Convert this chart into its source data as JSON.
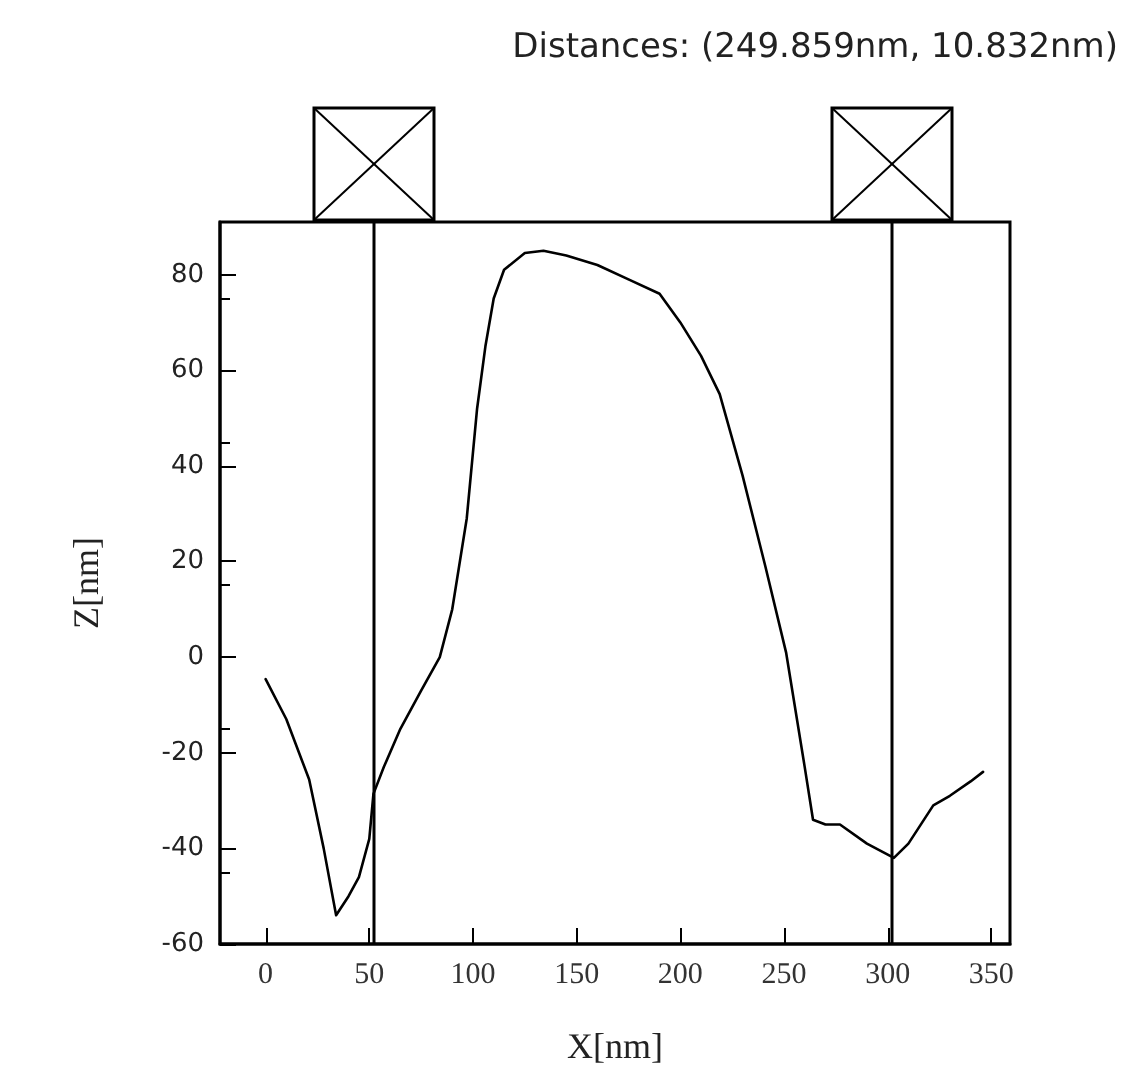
{
  "chart_data": {
    "type": "line",
    "title": "Distances: (249.859nm, 10.832nm)",
    "xlabel": "X[nm]",
    "ylabel": "Z[nm]",
    "x": [
      0,
      10,
      21,
      28,
      34,
      40,
      45,
      50,
      52,
      57,
      65,
      75,
      84,
      90,
      97,
      102,
      106,
      110,
      115,
      125,
      134,
      145,
      160,
      175,
      190,
      200,
      210,
      219,
      230,
      241,
      251,
      260,
      264,
      270,
      277,
      290,
      303,
      310,
      322,
      330,
      340,
      346
    ],
    "series": [
      {
        "color": "#000000",
        "values": [
          -4.6,
          -13,
          -25.6,
          -40,
          -54,
          -50,
          -46,
          -38,
          -28.6,
          -23,
          -15,
          -7,
          0,
          10,
          29,
          52,
          65,
          75,
          81,
          84.5,
          85,
          84,
          82,
          79,
          76,
          70,
          63,
          55,
          38,
          19,
          1,
          -23,
          -34,
          -35,
          -35,
          -39,
          -42,
          -39,
          -31,
          -29,
          -26,
          -24
        ]
      }
    ],
    "xlim": [
      -22,
      359
    ],
    "xticks": [
      0,
      50,
      100,
      150,
      200,
      250,
      300,
      350
    ],
    "ylim": [
      -60,
      91
    ],
    "yticks": [
      -60,
      -40,
      -20,
      0,
      20,
      40,
      60,
      80
    ],
    "ref_lines": [
      {
        "axis": "x",
        "value": 52,
        "color": "#000000"
      },
      {
        "axis": "x",
        "value": 302,
        "color": "#000000"
      }
    ],
    "grid": false,
    "marker": "none",
    "line_style": "solid"
  }
}
